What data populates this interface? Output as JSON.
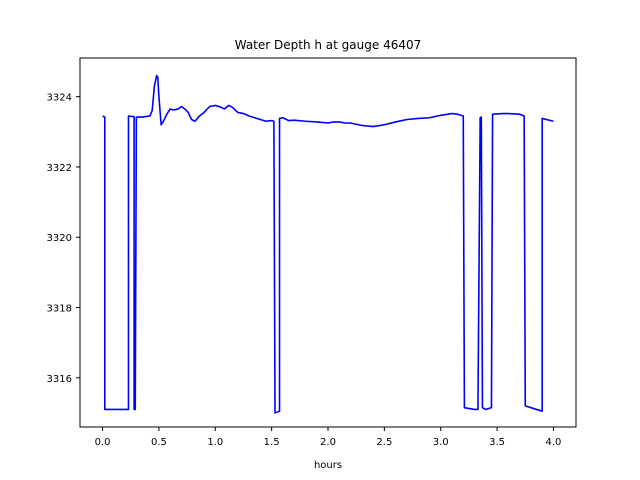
{
  "chart_data": {
    "type": "line",
    "title": "Water Depth h at gauge 46407",
    "xlabel": "hours",
    "ylabel": "",
    "xlim": [
      -0.2,
      4.2
    ],
    "ylim": [
      3314.6,
      3325.1
    ],
    "xticks": [
      0.0,
      0.5,
      1.0,
      1.5,
      2.0,
      2.5,
      3.0,
      3.5,
      4.0
    ],
    "xtick_labels": [
      "0.0",
      "0.5",
      "1.0",
      "1.5",
      "2.0",
      "2.5",
      "3.0",
      "3.5",
      "4.0"
    ],
    "yticks": [
      3316,
      3318,
      3320,
      3322,
      3324
    ],
    "ytick_labels": [
      "3316",
      "3318",
      "3320",
      "3322",
      "3324"
    ],
    "grid": false,
    "series": [
      {
        "color": "#0000ff",
        "points": [
          [
            0.0,
            3323.45
          ],
          [
            0.02,
            3323.42
          ],
          [
            0.02,
            3315.1
          ],
          [
            0.23,
            3315.1
          ],
          [
            0.23,
            3323.45
          ],
          [
            0.28,
            3323.43
          ],
          [
            0.28,
            3315.1
          ],
          [
            0.29,
            3315.1
          ],
          [
            0.3,
            3323.42
          ],
          [
            0.35,
            3323.42
          ],
          [
            0.42,
            3323.45
          ],
          [
            0.44,
            3323.6
          ],
          [
            0.46,
            3324.3
          ],
          [
            0.48,
            3324.6
          ],
          [
            0.49,
            3324.55
          ],
          [
            0.5,
            3324.0
          ],
          [
            0.52,
            3323.2
          ],
          [
            0.54,
            3323.3
          ],
          [
            0.57,
            3323.5
          ],
          [
            0.6,
            3323.65
          ],
          [
            0.63,
            3323.62
          ],
          [
            0.67,
            3323.65
          ],
          [
            0.7,
            3323.72
          ],
          [
            0.73,
            3323.65
          ],
          [
            0.76,
            3323.55
          ],
          [
            0.79,
            3323.35
          ],
          [
            0.82,
            3323.3
          ],
          [
            0.86,
            3323.45
          ],
          [
            0.9,
            3323.55
          ],
          [
            0.95,
            3323.72
          ],
          [
            1.0,
            3323.75
          ],
          [
            1.05,
            3323.7
          ],
          [
            1.08,
            3323.65
          ],
          [
            1.12,
            3323.75
          ],
          [
            1.15,
            3323.7
          ],
          [
            1.2,
            3323.55
          ],
          [
            1.25,
            3323.52
          ],
          [
            1.3,
            3323.45
          ],
          [
            1.35,
            3323.4
          ],
          [
            1.4,
            3323.35
          ],
          [
            1.45,
            3323.3
          ],
          [
            1.5,
            3323.32
          ],
          [
            1.52,
            3323.3
          ],
          [
            1.53,
            3315.0
          ],
          [
            1.57,
            3315.05
          ],
          [
            1.57,
            3323.38
          ],
          [
            1.6,
            3323.4
          ],
          [
            1.65,
            3323.32
          ],
          [
            1.7,
            3323.33
          ],
          [
            1.8,
            3323.3
          ],
          [
            1.9,
            3323.28
          ],
          [
            2.0,
            3323.25
          ],
          [
            2.05,
            3323.28
          ],
          [
            2.1,
            3323.28
          ],
          [
            2.15,
            3323.25
          ],
          [
            2.2,
            3323.25
          ],
          [
            2.3,
            3323.18
          ],
          [
            2.4,
            3323.15
          ],
          [
            2.5,
            3323.2
          ],
          [
            2.6,
            3323.28
          ],
          [
            2.7,
            3323.35
          ],
          [
            2.8,
            3323.38
          ],
          [
            2.9,
            3323.4
          ],
          [
            3.0,
            3323.47
          ],
          [
            3.1,
            3323.52
          ],
          [
            3.15,
            3323.5
          ],
          [
            3.2,
            3323.45
          ],
          [
            3.21,
            3315.15
          ],
          [
            3.3,
            3315.1
          ],
          [
            3.33,
            3315.1
          ],
          [
            3.35,
            3323.4
          ],
          [
            3.36,
            3323.42
          ],
          [
            3.37,
            3315.15
          ],
          [
            3.4,
            3315.1
          ],
          [
            3.45,
            3315.15
          ],
          [
            3.46,
            3323.5
          ],
          [
            3.55,
            3323.52
          ],
          [
            3.6,
            3323.52
          ],
          [
            3.7,
            3323.5
          ],
          [
            3.74,
            3323.45
          ],
          [
            3.75,
            3315.2
          ],
          [
            3.85,
            3315.1
          ],
          [
            3.9,
            3315.05
          ],
          [
            3.9,
            3323.38
          ],
          [
            4.0,
            3323.3
          ]
        ]
      }
    ]
  }
}
